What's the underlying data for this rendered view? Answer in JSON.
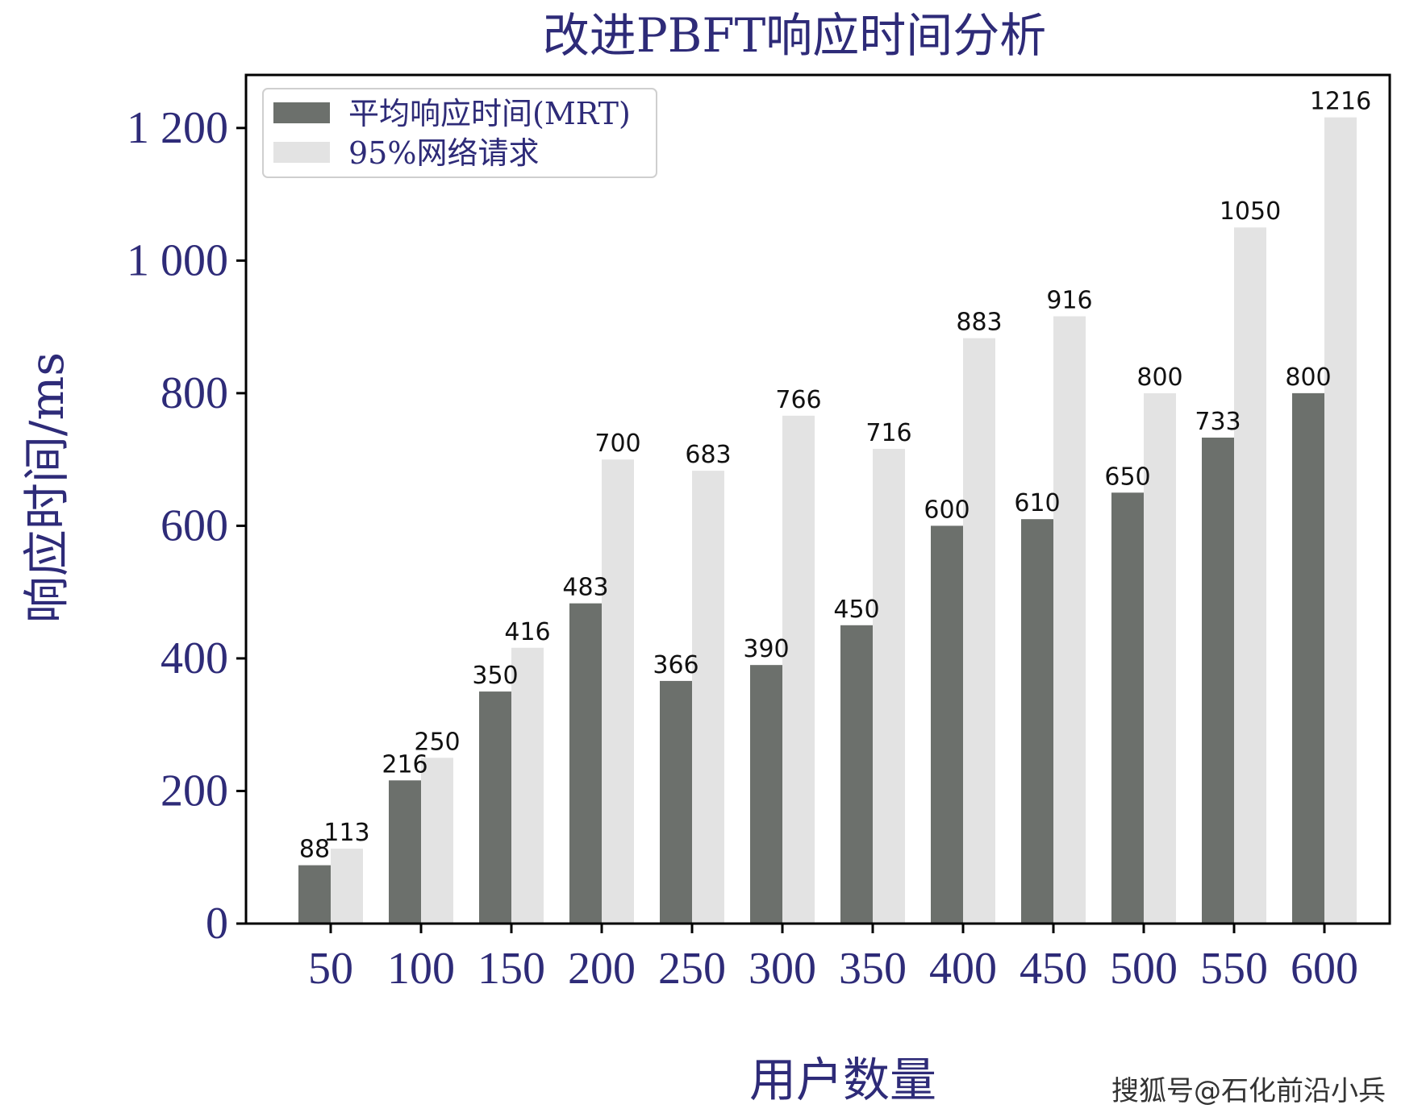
{
  "colors": {
    "mrt": "#6c706c",
    "p95": "#e3e3e3",
    "text": "#2e2b78",
    "axis": "#000000"
  },
  "watermark": "搜狐号@石化前沿小兵",
  "chart_data": {
    "type": "bar",
    "title": "改进PBFT响应时间分析",
    "xlabel": "用户数量",
    "ylabel": "响应时间/ms",
    "categories": [
      "50",
      "100",
      "150",
      "200",
      "250",
      "300",
      "350",
      "400",
      "450",
      "500",
      "550",
      "600"
    ],
    "series": [
      {
        "name": "平均响应时间(MRT)",
        "values": [
          88,
          216,
          350,
          483,
          366,
          390,
          450,
          600,
          610,
          650,
          733,
          800
        ]
      },
      {
        "name": "95%网络请求",
        "values": [
          113,
          250,
          416,
          700,
          683,
          766,
          716,
          883,
          916,
          800,
          1050,
          1216
        ]
      }
    ],
    "ylim": [
      0,
      1280
    ],
    "yticks": [
      0,
      200,
      400,
      600,
      800,
      1000,
      1200
    ],
    "ytick_labels": [
      "0",
      "200",
      "400",
      "600",
      "800",
      "1 000",
      "1 200"
    ],
    "legend_position": "top-left",
    "grid": false
  }
}
